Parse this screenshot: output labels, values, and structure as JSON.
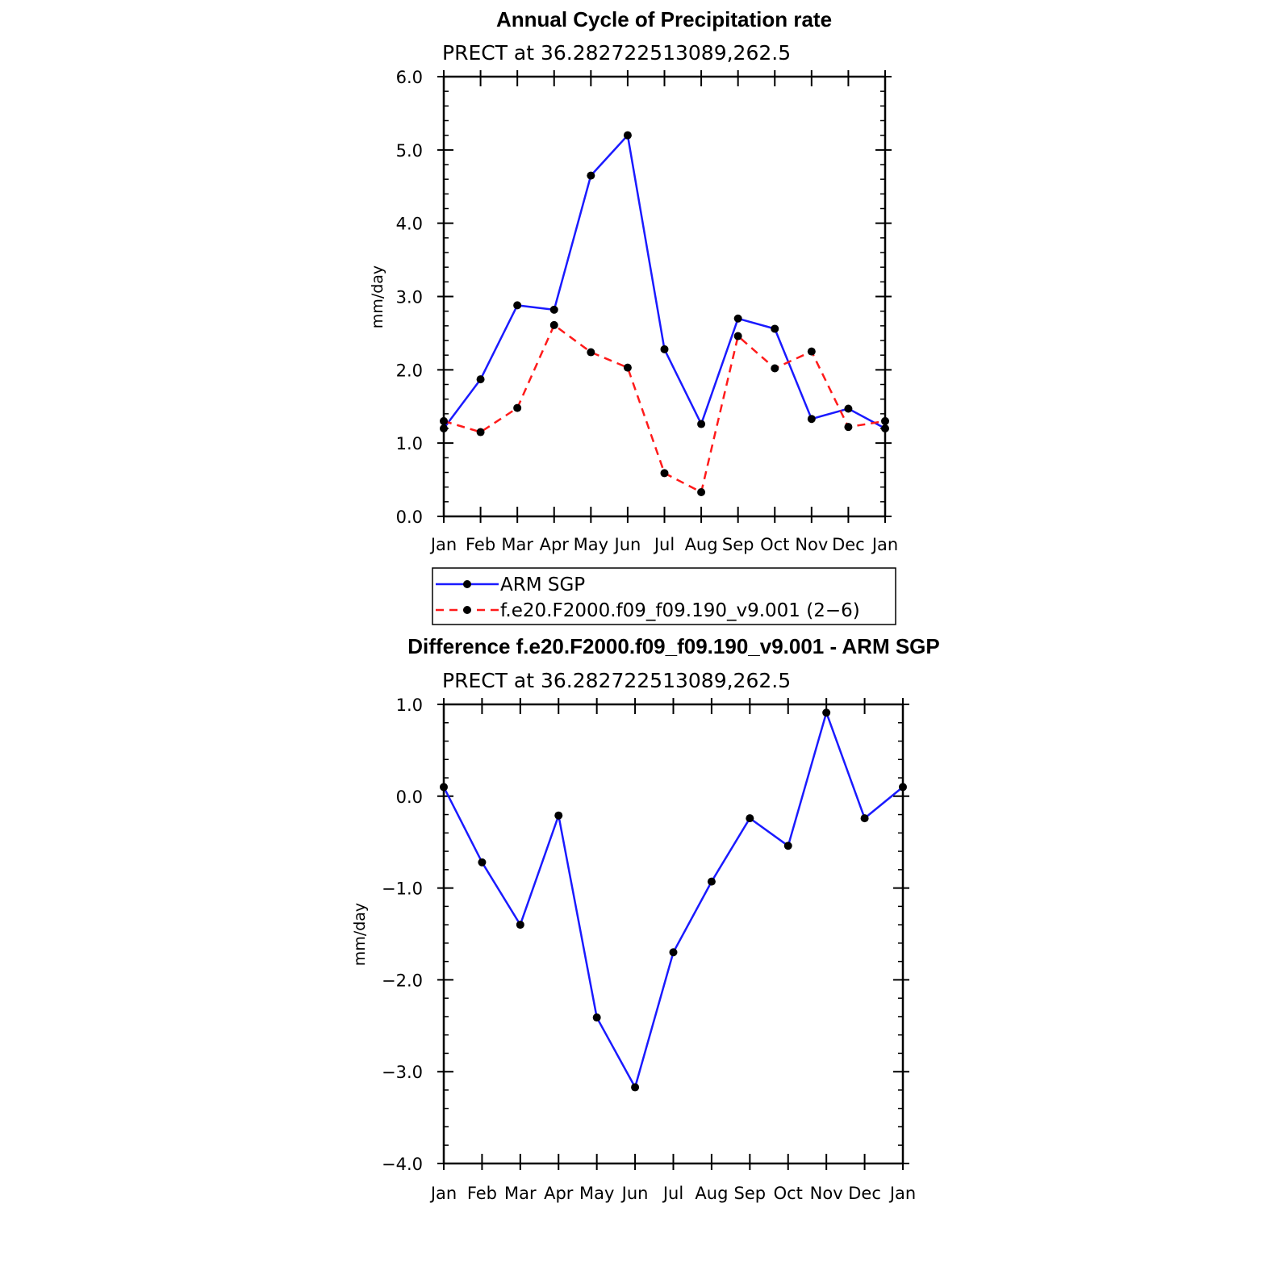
{
  "chart_data": [
    {
      "type": "line",
      "title": "Annual Cycle of Precipitation rate",
      "subtitle": "PRECT at 36.282722513089,262.5",
      "xlabel": "",
      "ylabel": "mm/day",
      "categories": [
        "Jan",
        "Feb",
        "Mar",
        "Apr",
        "May",
        "Jun",
        "Jul",
        "Aug",
        "Sep",
        "Oct",
        "Nov",
        "Dec",
        "Jan"
      ],
      "ylim": [
        0,
        6
      ],
      "yticks": [
        0,
        1,
        2,
        3,
        4,
        5,
        6
      ],
      "ytick_labels": [
        "0.0",
        "1.0",
        "2.0",
        "3.0",
        "4.0",
        "5.0",
        "6.0"
      ],
      "series": [
        {
          "name": "ARM SGP",
          "color": "#1a1aff",
          "dash": "solid",
          "values": [
            1.2,
            1.87,
            2.88,
            2.82,
            4.65,
            5.2,
            2.28,
            1.26,
            2.7,
            2.56,
            1.33,
            1.47,
            1.2
          ]
        },
        {
          "name": "f.e20.F2000.f09_f09.190_v9.001 (2−6)",
          "color": "#ff1a1a",
          "dash": "dashed",
          "values": [
            1.3,
            1.15,
            1.48,
            2.61,
            2.24,
            2.03,
            0.59,
            0.33,
            2.46,
            2.02,
            2.25,
            1.22,
            1.3
          ]
        }
      ],
      "legend": {
        "position": "bottom",
        "entries": [
          "ARM SGP",
          "f.e20.F2000.f09_f09.190_v9.001 (2−6)"
        ]
      }
    },
    {
      "type": "line",
      "title": "Difference f.e20.F2000.f09_f09.190_v9.001 - ARM SGP",
      "subtitle": "PRECT at 36.282722513089,262.5",
      "xlabel": "",
      "ylabel": "mm/day",
      "categories": [
        "Jan",
        "Feb",
        "Mar",
        "Apr",
        "May",
        "Jun",
        "Jul",
        "Aug",
        "Sep",
        "Oct",
        "Nov",
        "Dec",
        "Jan"
      ],
      "ylim": [
        -4,
        1
      ],
      "yticks": [
        -4,
        -3,
        -2,
        -1,
        0,
        1
      ],
      "ytick_labels": [
        "−4.0",
        "−3.0",
        "−2.0",
        "−1.0",
        "0.0",
        "1.0"
      ],
      "series": [
        {
          "name": "Difference",
          "color": "#1a1aff",
          "dash": "solid",
          "values": [
            0.1,
            -0.72,
            -1.4,
            -0.21,
            -2.41,
            -3.17,
            -1.7,
            -0.93,
            -0.24,
            -0.54,
            0.91,
            -0.24,
            0.1
          ]
        }
      ]
    }
  ]
}
